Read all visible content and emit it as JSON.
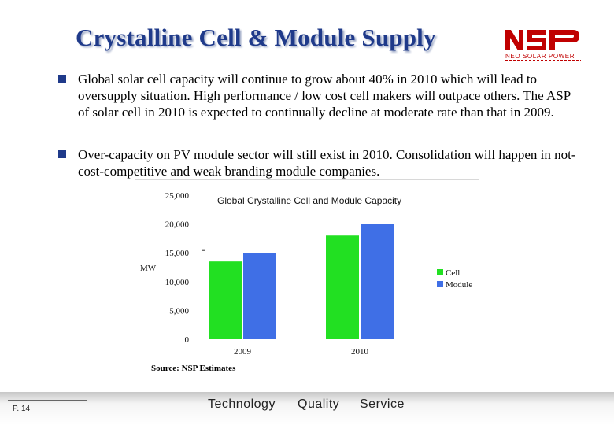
{
  "slide": {
    "title": "Crystalline Cell & Module Supply",
    "bullets": [
      "Global solar cell capacity will continue to grow about 40% in 2010 which will lead to oversupply situation. High performance / low cost cell makers will outpace others. The ASP of solar cell in 2010 is expected to continually decline at moderate rate than that in 2009.",
      "Over-capacity on PV module sector will still exist in 2010. Consolidation will happen in not-cost-competitive and weak branding module companies."
    ],
    "source": "Source: NSP Estimates"
  },
  "logo": {
    "text": "NSP",
    "tagline": "NEO SOLAR POWER",
    "color": "#c00000"
  },
  "footer": {
    "page": "P. 14",
    "motto": [
      "Technology",
      "Quality",
      "Service"
    ]
  },
  "chart_data": {
    "type": "bar",
    "title": "Global Crystalline Cell and Module Capacity",
    "ylabel": "MW",
    "xlabel": "",
    "categories": [
      "2009",
      "2010"
    ],
    "series": [
      {
        "name": "Cell",
        "values": [
          13500,
          18000
        ],
        "color": "#22e022"
      },
      {
        "name": "Module",
        "values": [
          15000,
          20000
        ],
        "color": "#3f6fe6"
      }
    ],
    "ylim": [
      0,
      25000
    ],
    "yticks": [
      {
        "value": 0,
        "label": "0"
      },
      {
        "value": 5000,
        "label": "5,000"
      },
      {
        "value": 10000,
        "label": "10,000"
      },
      {
        "value": 15000,
        "label": "15,000"
      },
      {
        "value": 20000,
        "label": "20,000"
      },
      {
        "value": 25000,
        "label": "25,000"
      }
    ],
    "grid": false,
    "legend": "right"
  }
}
